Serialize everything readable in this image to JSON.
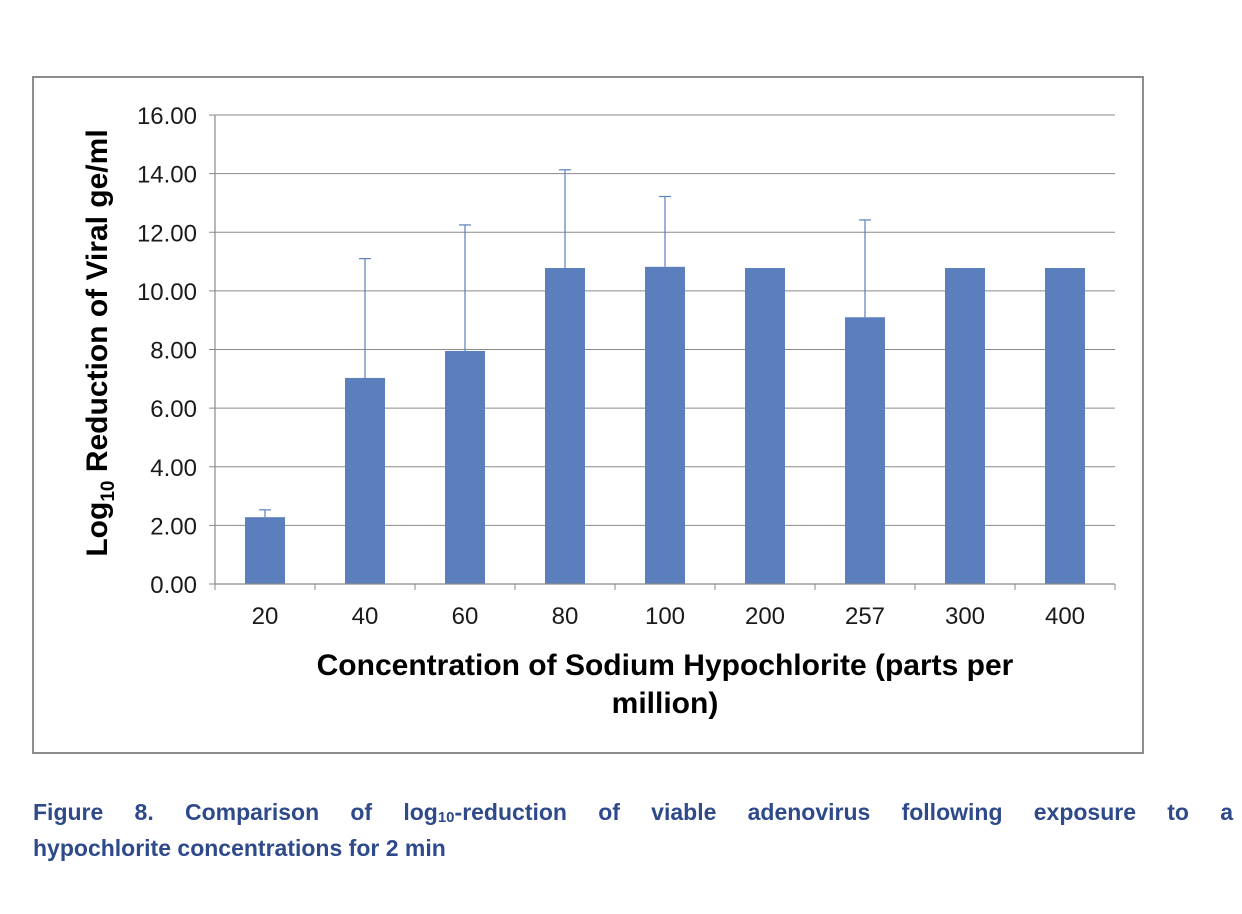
{
  "chart_data": {
    "type": "bar",
    "categories": [
      "20",
      "40",
      "60",
      "80",
      "100",
      "200",
      "257",
      "300",
      "400"
    ],
    "values": [
      2.28,
      7.03,
      7.95,
      10.78,
      10.82,
      10.78,
      9.1,
      10.78,
      10.78
    ],
    "error_upper": [
      0.25,
      4.07,
      4.3,
      3.35,
      2.4,
      0,
      3.32,
      0,
      0
    ],
    "ylim": [
      0,
      16
    ],
    "yticks": [
      "0.00",
      "2.00",
      "4.00",
      "6.00",
      "8.00",
      "10.00",
      "12.00",
      "14.00",
      "16.00"
    ],
    "ylabel": {
      "pre": "Log",
      "sub": "10",
      "post": " Reduction of Viral ge/ml"
    },
    "xlabel_line1": "Concentration of Sodium Hypochlorite (parts per",
    "xlabel_line2": "million)",
    "grid": true,
    "bar_color": "#5b7fbc",
    "error_color": "#5b7fbc"
  },
  "caption": {
    "line1_pre": "Figure 8. Comparison of log",
    "line1_sub": "10",
    "line1_post": "-reduction of viable adenovirus following exposure to a",
    "line2": "hypochlorite concentrations for 2 min"
  }
}
